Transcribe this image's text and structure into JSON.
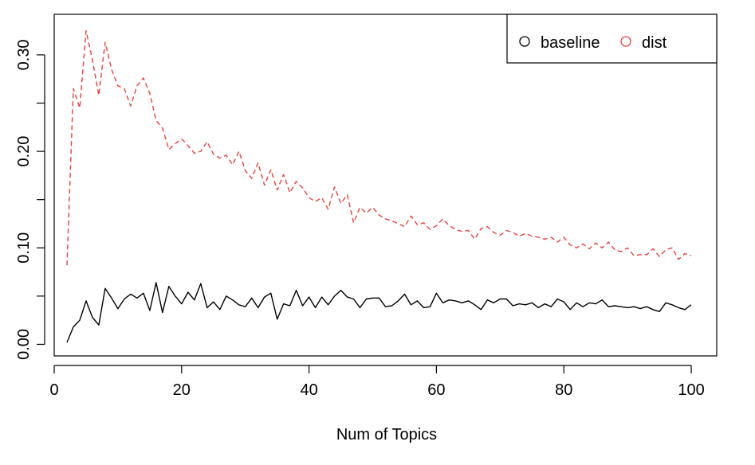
{
  "chart_data": {
    "type": "line",
    "title": "",
    "xlabel": "Num of Topics",
    "ylabel": "",
    "xlim": [
      0,
      104
    ],
    "ylim": [
      -0.012,
      0.342
    ],
    "x_ticks": [
      0,
      20,
      40,
      60,
      80,
      100
    ],
    "x_tick_labels": [
      "0",
      "20",
      "40",
      "60",
      "80",
      "100"
    ],
    "y_ticks": [
      0.0,
      0.05,
      0.1,
      0.15,
      0.2,
      0.25,
      0.3
    ],
    "y_tick_labels": [
      "0.00",
      "",
      "0.10",
      "",
      "0.20",
      "",
      "0.30"
    ],
    "grid": false,
    "legend_position": "top-right",
    "x": [
      2,
      3,
      4,
      5,
      6,
      7,
      8,
      9,
      10,
      11,
      12,
      13,
      14,
      15,
      16,
      17,
      18,
      19,
      20,
      21,
      22,
      23,
      24,
      25,
      26,
      27,
      28,
      29,
      30,
      31,
      32,
      33,
      34,
      35,
      36,
      37,
      38,
      39,
      40,
      41,
      42,
      43,
      44,
      45,
      46,
      47,
      48,
      49,
      50,
      51,
      52,
      53,
      54,
      55,
      56,
      57,
      58,
      59,
      60,
      61,
      62,
      63,
      64,
      65,
      66,
      67,
      68,
      69,
      70,
      71,
      72,
      73,
      74,
      75,
      76,
      77,
      78,
      79,
      80,
      81,
      82,
      83,
      84,
      85,
      86,
      87,
      88,
      89,
      90,
      91,
      92,
      93,
      94,
      95,
      96,
      97,
      98,
      99,
      100
    ],
    "series": [
      {
        "name": "baseline",
        "color": "#000000",
        "dash": "solid",
        "values": [
          0.002,
          0.018,
          0.025,
          0.045,
          0.028,
          0.02,
          0.058,
          0.048,
          0.037,
          0.047,
          0.052,
          0.048,
          0.053,
          0.035,
          0.064,
          0.033,
          0.06,
          0.05,
          0.042,
          0.054,
          0.046,
          0.063,
          0.038,
          0.044,
          0.036,
          0.05,
          0.046,
          0.041,
          0.039,
          0.048,
          0.038,
          0.049,
          0.053,
          0.026,
          0.042,
          0.04,
          0.056,
          0.04,
          0.049,
          0.038,
          0.049,
          0.041,
          0.05,
          0.056,
          0.049,
          0.047,
          0.038,
          0.047,
          0.048,
          0.048,
          0.039,
          0.04,
          0.045,
          0.052,
          0.041,
          0.045,
          0.038,
          0.039,
          0.053,
          0.043,
          0.046,
          0.045,
          0.043,
          0.045,
          0.041,
          0.036,
          0.046,
          0.043,
          0.047,
          0.047,
          0.04,
          0.042,
          0.041,
          0.043,
          0.038,
          0.042,
          0.039,
          0.047,
          0.044,
          0.036,
          0.043,
          0.039,
          0.043,
          0.042,
          0.046,
          0.039,
          0.04,
          0.039,
          0.038,
          0.039,
          0.037,
          0.039,
          0.036,
          0.034,
          0.043,
          0.041,
          0.038,
          0.036,
          0.041
        ]
      },
      {
        "name": "dist",
        "color": "#e8413a",
        "dash": "dashed",
        "values": [
          0.082,
          0.265,
          0.245,
          0.325,
          0.295,
          0.258,
          0.313,
          0.285,
          0.268,
          0.265,
          0.247,
          0.268,
          0.276,
          0.26,
          0.232,
          0.224,
          0.202,
          0.208,
          0.213,
          0.206,
          0.198,
          0.2,
          0.21,
          0.197,
          0.193,
          0.196,
          0.186,
          0.2,
          0.18,
          0.172,
          0.188,
          0.165,
          0.181,
          0.16,
          0.176,
          0.157,
          0.169,
          0.162,
          0.152,
          0.148,
          0.152,
          0.14,
          0.163,
          0.146,
          0.155,
          0.126,
          0.142,
          0.136,
          0.142,
          0.134,
          0.13,
          0.128,
          0.125,
          0.122,
          0.133,
          0.124,
          0.126,
          0.119,
          0.123,
          0.13,
          0.123,
          0.119,
          0.117,
          0.118,
          0.109,
          0.12,
          0.122,
          0.116,
          0.113,
          0.118,
          0.116,
          0.112,
          0.115,
          0.112,
          0.111,
          0.109,
          0.111,
          0.106,
          0.111,
          0.103,
          0.1,
          0.104,
          0.099,
          0.105,
          0.1,
          0.106,
          0.098,
          0.096,
          0.1,
          0.092,
          0.093,
          0.093,
          0.099,
          0.091,
          0.098,
          0.1,
          0.088,
          0.094,
          0.092
        ]
      }
    ]
  }
}
